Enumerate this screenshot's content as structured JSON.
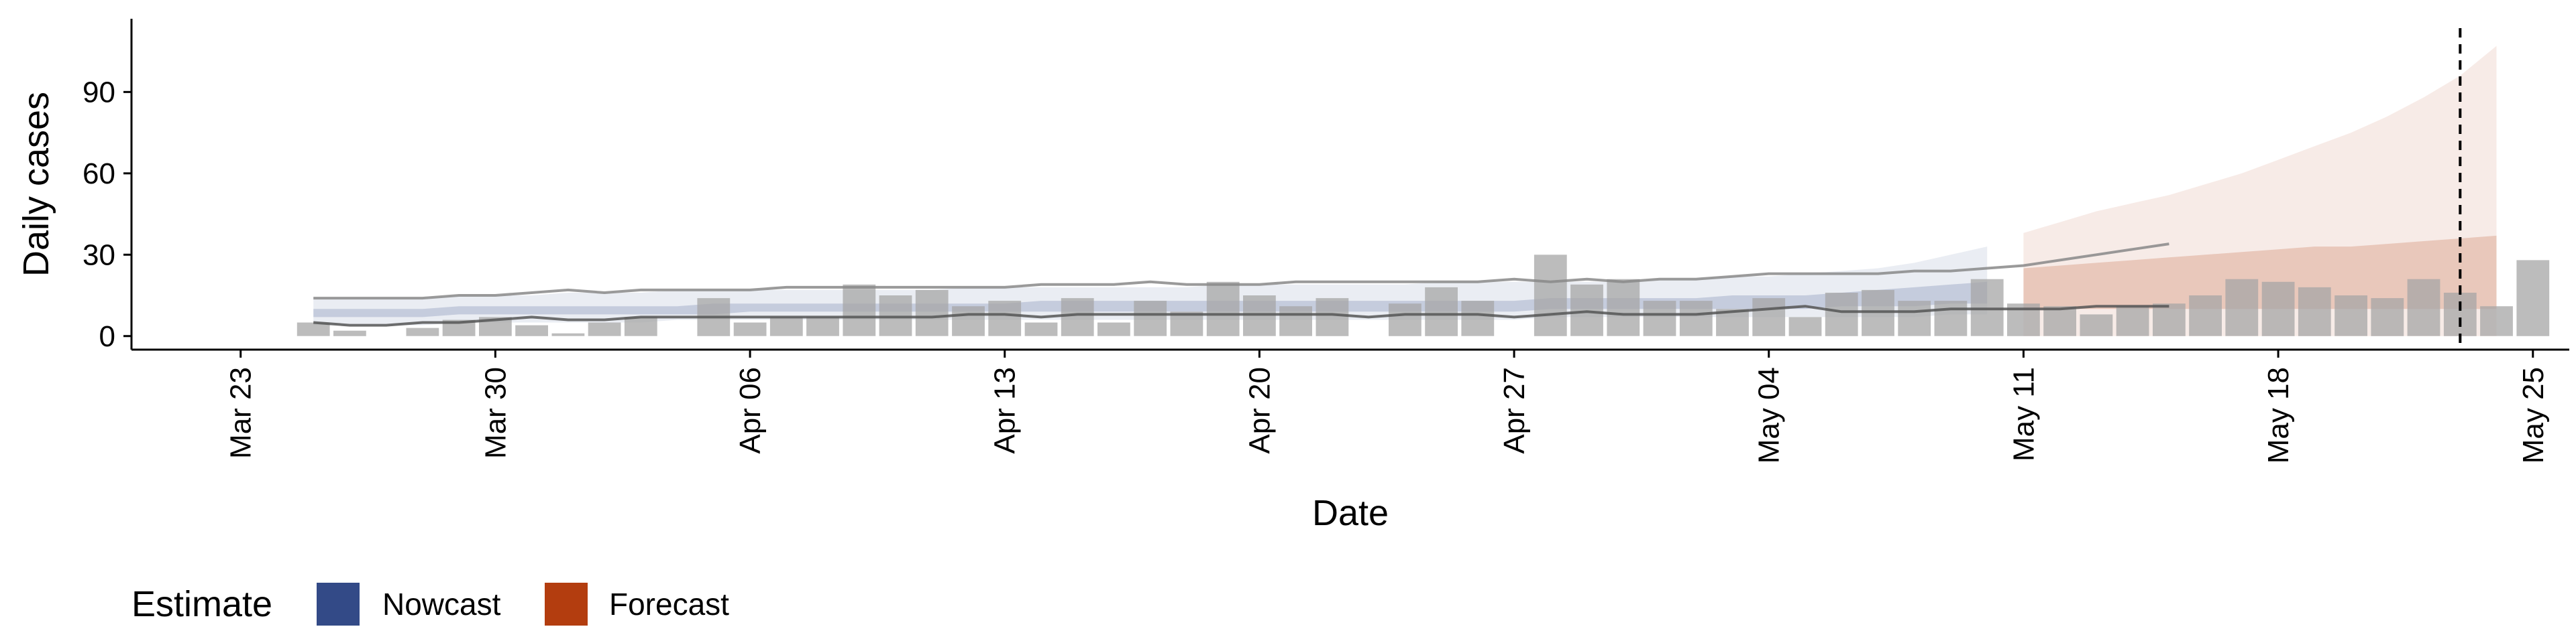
{
  "chart_data": {
    "type": "bar",
    "xlabel": "Date",
    "ylabel": "Daily cases",
    "ylim": [
      -5,
      117
    ],
    "yticks": [
      0,
      30,
      60,
      90
    ],
    "xlim": [
      "2020-03-20",
      "2020-05-26"
    ],
    "xticks": [
      {
        "date": "2020-03-23",
        "label": "Mar 23"
      },
      {
        "date": "2020-03-30",
        "label": "Mar 30"
      },
      {
        "date": "2020-04-06",
        "label": "Apr 06"
      },
      {
        "date": "2020-04-13",
        "label": "Apr 13"
      },
      {
        "date": "2020-04-20",
        "label": "Apr 20"
      },
      {
        "date": "2020-04-27",
        "label": "Apr 27"
      },
      {
        "date": "2020-05-04",
        "label": "May 04"
      },
      {
        "date": "2020-05-11",
        "label": "May 11"
      },
      {
        "date": "2020-05-18",
        "label": "May 18"
      },
      {
        "date": "2020-05-25",
        "label": "May 25"
      }
    ],
    "grid": false,
    "legend": {
      "title": "Estimate",
      "position": "bottom-left",
      "entries": [
        {
          "label": "Nowcast",
          "color": "#334a87"
        },
        {
          "label": "Forecast",
          "color": "#b33d0f"
        }
      ]
    },
    "bars": {
      "color": "#a6a6a6",
      "start": "2020-03-25",
      "values": [
        5,
        2,
        null,
        3,
        6,
        7,
        4,
        1,
        5,
        7,
        null,
        14,
        5,
        7,
        7,
        19,
        15,
        17,
        11,
        13,
        5,
        14,
        5,
        13,
        9,
        20,
        15,
        11,
        14,
        null,
        12,
        18,
        13,
        null,
        30,
        19,
        21,
        13,
        13,
        10,
        14,
        7,
        16,
        17,
        13,
        13,
        21,
        12,
        11,
        8,
        11,
        12,
        15,
        21,
        20,
        18,
        15,
        14,
        21,
        16,
        11,
        28
      ]
    },
    "series": [
      {
        "estimate": "Nowcast",
        "color": "#334a87",
        "start": "2020-03-25",
        "end": "2020-05-10",
        "lower_90": [
          4,
          4,
          4,
          4,
          5,
          5,
          5,
          5,
          5,
          5,
          6,
          6,
          6,
          6,
          6,
          6,
          6,
          6,
          6,
          6,
          6,
          6,
          6,
          6,
          6,
          6,
          6,
          6,
          6,
          6,
          6,
          6,
          6,
          6,
          7,
          7,
          7,
          7,
          7,
          7,
          7,
          7,
          7,
          7,
          7,
          8,
          8
        ],
        "lower_50": [
          7,
          7,
          7,
          7,
          8,
          8,
          8,
          8,
          8,
          8,
          8,
          8,
          9,
          9,
          9,
          9,
          9,
          9,
          9,
          9,
          9,
          9,
          9,
          9,
          9,
          9,
          9,
          9,
          9,
          9,
          9,
          9,
          9,
          9,
          10,
          10,
          10,
          10,
          10,
          10,
          10,
          10,
          11,
          11,
          11,
          12,
          12
        ],
        "upper_50": [
          10,
          10,
          10,
          10,
          11,
          11,
          11,
          11,
          11,
          11,
          11,
          12,
          12,
          12,
          12,
          12,
          12,
          12,
          12,
          12,
          13,
          13,
          13,
          13,
          13,
          13,
          13,
          13,
          13,
          13,
          13,
          13,
          13,
          13,
          14,
          14,
          14,
          14,
          14,
          15,
          15,
          15,
          16,
          17,
          18,
          19,
          20
        ],
        "upper_90": [
          14,
          14,
          14,
          14,
          15,
          15,
          15,
          16,
          16,
          16,
          17,
          17,
          17,
          17,
          17,
          17,
          17,
          17,
          18,
          18,
          18,
          18,
          18,
          18,
          18,
          19,
          19,
          19,
          19,
          19,
          19,
          20,
          20,
          20,
          20,
          20,
          20,
          21,
          21,
          22,
          22,
          23,
          24,
          25,
          27,
          30,
          33
        ]
      },
      {
        "estimate": "Forecast",
        "color": "#b33d0f",
        "start": "2020-05-11",
        "end": "2020-05-24",
        "lower_50": [
          10,
          10,
          10,
          10,
          10,
          10,
          10,
          10,
          10,
          10,
          10,
          10,
          10,
          10
        ],
        "upper_50": [
          25,
          26,
          27,
          28,
          29,
          30,
          31,
          32,
          33,
          33,
          34,
          35,
          36,
          37
        ],
        "upper_90": [
          38,
          42,
          46,
          49,
          52,
          56,
          60,
          65,
          70,
          75,
          81,
          88,
          96,
          107
        ]
      }
    ],
    "lines": [
      {
        "color": "#888888",
        "start": "2020-03-25",
        "values": [
          14,
          14,
          14,
          14,
          15,
          15,
          16,
          17,
          16,
          17,
          17,
          17,
          17,
          18,
          18,
          18,
          18,
          18,
          18,
          18,
          19,
          19,
          19,
          20,
          19,
          19,
          19,
          20,
          20,
          20,
          20,
          20,
          20,
          21,
          20,
          21,
          20,
          21,
          21,
          22,
          23,
          23,
          23,
          23,
          24,
          24,
          25,
          26,
          28,
          30,
          32,
          34
        ]
      },
      {
        "color": "#555555",
        "start": "2020-03-25",
        "values": [
          5,
          4,
          4,
          5,
          5,
          6,
          7,
          6,
          6,
          7,
          7,
          7,
          7,
          7,
          7,
          7,
          7,
          7,
          8,
          8,
          7,
          8,
          8,
          8,
          8,
          8,
          8,
          8,
          8,
          7,
          8,
          8,
          8,
          7,
          8,
          9,
          8,
          8,
          8,
          9,
          10,
          11,
          9,
          9,
          9,
          10,
          10,
          10,
          10,
          11,
          11,
          11
        ]
      }
    ],
    "vline": {
      "date": "2020-05-23",
      "style": "dashed"
    }
  }
}
